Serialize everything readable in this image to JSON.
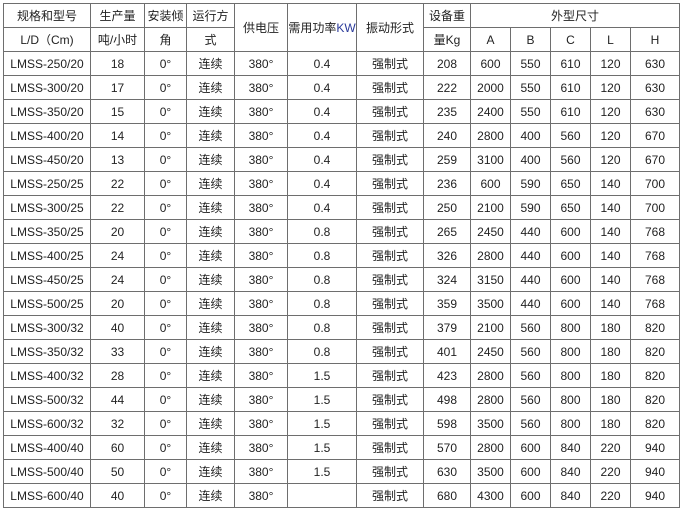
{
  "headers": {
    "model": "规格和型号",
    "model_sub": "L/D（Cm)",
    "capacity": "生产量",
    "capacity_sub": "吨/小时",
    "angle": "安装倾",
    "angle_sub": "角",
    "mode": "运行方",
    "mode_sub": "式",
    "voltage": "供电压",
    "power": "需用功率",
    "power_unit": "KW",
    "vibration": "振动形式",
    "weight": "设备重",
    "weight_sub": "量Kg",
    "dimensions": "外型尺寸",
    "dim_cols": [
      "A",
      "B",
      "C",
      "L",
      "H"
    ]
  },
  "rows": [
    [
      "LMSS-250/20",
      "18",
      "0°",
      "连续",
      "380°",
      "0.4",
      "强制式",
      "208",
      "600",
      "550",
      "610",
      "120",
      "630"
    ],
    [
      "LMSS-300/20",
      "17",
      "0°",
      "连续",
      "380°",
      "0.4",
      "强制式",
      "222",
      "2000",
      "550",
      "610",
      "120",
      "630"
    ],
    [
      "LMSS-350/20",
      "15",
      "0°",
      "连续",
      "380°",
      "0.4",
      "强制式",
      "235",
      "2400",
      "550",
      "610",
      "120",
      "630"
    ],
    [
      "LMSS-400/20",
      "14",
      "0°",
      "连续",
      "380°",
      "0.4",
      "强制式",
      "240",
      "2800",
      "400",
      "560",
      "120",
      "670"
    ],
    [
      "LMSS-450/20",
      "13",
      "0°",
      "连续",
      "380°",
      "0.4",
      "强制式",
      "259",
      "3100",
      "400",
      "560",
      "120",
      "670"
    ],
    [
      "LMSS-250/25",
      "22",
      "0°",
      "连续",
      "380°",
      "0.4",
      "强制式",
      "236",
      "600",
      "590",
      "650",
      "140",
      "700"
    ],
    [
      "LMSS-300/25",
      "22",
      "0°",
      "连续",
      "380°",
      "0.4",
      "强制式",
      "250",
      "2100",
      "590",
      "650",
      "140",
      "700"
    ],
    [
      "LMSS-350/25",
      "20",
      "0°",
      "连续",
      "380°",
      "0.8",
      "强制式",
      "265",
      "2450",
      "440",
      "600",
      "140",
      "768"
    ],
    [
      "LMSS-400/25",
      "24",
      "0°",
      "连续",
      "380°",
      "0.8",
      "强制式",
      "326",
      "2800",
      "440",
      "600",
      "140",
      "768"
    ],
    [
      "LMSS-450/25",
      "24",
      "0°",
      "连续",
      "380°",
      "0.8",
      "强制式",
      "324",
      "3150",
      "440",
      "600",
      "140",
      "768"
    ],
    [
      "LMSS-500/25",
      "20",
      "0°",
      "连续",
      "380°",
      "0.8",
      "强制式",
      "359",
      "3500",
      "440",
      "600",
      "140",
      "768"
    ],
    [
      "LMSS-300/32",
      "40",
      "0°",
      "连续",
      "380°",
      "0.8",
      "强制式",
      "379",
      "2100",
      "560",
      "800",
      "180",
      "820"
    ],
    [
      "LMSS-350/32",
      "33",
      "0°",
      "连续",
      "380°",
      "0.8",
      "强制式",
      "401",
      "2450",
      "560",
      "800",
      "180",
      "820"
    ],
    [
      "LMSS-400/32",
      "28",
      "0°",
      "连续",
      "380°",
      "1.5",
      "强制式",
      "423",
      "2800",
      "560",
      "800",
      "180",
      "820"
    ],
    [
      "LMSS-500/32",
      "44",
      "0°",
      "连续",
      "380°",
      "1.5",
      "强制式",
      "498",
      "2800",
      "560",
      "800",
      "180",
      "820"
    ],
    [
      "LMSS-600/32",
      "32",
      "0°",
      "连续",
      "380°",
      "1.5",
      "强制式",
      "598",
      "3500",
      "560",
      "800",
      "180",
      "820"
    ],
    [
      "LMSS-400/40",
      "60",
      "0°",
      "连续",
      "380°",
      "1.5",
      "强制式",
      "570",
      "2800",
      "600",
      "840",
      "220",
      "940"
    ],
    [
      "LMSS-500/40",
      "50",
      "0°",
      "连续",
      "380°",
      "1.5",
      "强制式",
      "630",
      "3500",
      "600",
      "840",
      "220",
      "940"
    ],
    [
      "LMSS-600/40",
      "40",
      "0°",
      "连续",
      "380°",
      "",
      "强制式",
      "680",
      "4300",
      "600",
      "840",
      "220",
      "940"
    ]
  ]
}
